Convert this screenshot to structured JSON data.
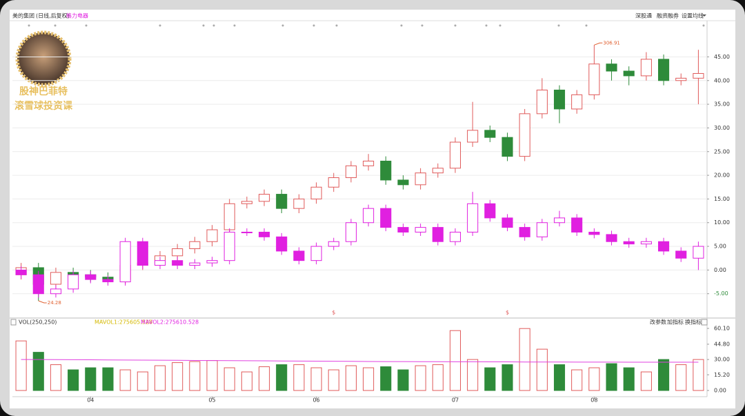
{
  "chart_data": {
    "type": "candlestick",
    "title": "美的集团",
    "subtitle": "(日线,后复权)",
    "compare_label": "格力电器",
    "toolbar": [
      "深股通",
      "融资融券",
      "设置均线"
    ],
    "categories": [
      null,
      null,
      null,
      null,
      "04",
      null,
      null,
      null,
      null,
      null,
      null,
      "05",
      null,
      null,
      null,
      null,
      null,
      "06",
      null,
      null,
      null,
      null,
      null,
      null,
      null,
      "07",
      null,
      null,
      null,
      null,
      null,
      null,
      null,
      "08",
      null,
      null,
      null,
      null,
      null,
      null
    ],
    "series": [
      {
        "name": "美的集团",
        "color_up": "#e05a5a",
        "color_down": "#2e8b3a",
        "open": [
          -1,
          0.5,
          -3,
          -0.5,
          -1,
          -1.5,
          -2,
          1,
          1.5,
          3,
          4.5,
          6,
          8.5,
          14,
          14.5,
          16,
          13,
          15,
          17.5,
          19.5,
          22,
          23,
          19,
          18,
          20.5,
          21.5,
          27,
          29.5,
          28,
          24,
          33,
          38,
          34,
          37,
          43.5,
          42,
          41,
          44.5,
          40,
          40.5
        ],
        "high": [
          1.5,
          1.5,
          0.5,
          0.5,
          0,
          -0.5,
          2,
          2.5,
          4,
          5.5,
          7,
          9.5,
          15,
          15.5,
          17,
          17,
          16,
          18.5,
          20.5,
          23,
          24.5,
          24,
          20,
          21.5,
          22.5,
          28,
          35.5,
          30.5,
          29,
          34,
          40.5,
          39,
          38,
          47.5,
          44.5,
          43,
          46,
          45.5,
          41.5,
          46.5
        ],
        "low": [
          -2,
          -6.5,
          -4,
          -2,
          -2.5,
          -3,
          -3,
          0,
          0.5,
          2,
          3.5,
          5,
          7.5,
          13,
          13.5,
          12,
          12,
          14,
          16.5,
          18.5,
          21,
          18,
          17,
          17,
          19.5,
          20.5,
          26,
          27,
          23,
          23,
          32,
          31,
          33,
          36,
          40,
          39,
          40,
          39,
          39,
          35
        ],
        "close": [
          0.5,
          -3,
          -0.5,
          -1,
          -1.5,
          -2,
          1,
          1.5,
          3,
          4.5,
          6,
          8.5,
          14,
          14.5,
          16,
          13,
          15,
          17.5,
          19.5,
          22,
          23,
          19,
          18,
          20.5,
          21.5,
          27,
          29.5,
          28,
          24,
          33,
          38,
          34,
          37,
          43.5,
          42,
          41,
          44.5,
          40,
          40.5,
          41.5
        ]
      },
      {
        "name": "格力电器",
        "color_up": "#e020e0",
        "color_down": "#e020e0",
        "open": [
          0,
          -1,
          -5,
          -4,
          -1,
          -2,
          -2.5,
          6,
          1,
          2,
          1,
          1.5,
          2,
          8,
          8,
          7,
          4,
          2,
          5,
          6,
          10,
          13,
          9,
          8,
          9,
          6,
          8,
          14,
          11,
          9,
          7,
          10,
          11,
          8,
          7.5,
          6,
          5.5,
          6,
          4,
          2.5
        ],
        "high": [
          0.8,
          -0.2,
          -3.2,
          -0.2,
          -0.2,
          -1.2,
          6.8,
          6.8,
          2.8,
          2.8,
          2.3,
          2.8,
          8.8,
          8.8,
          8.8,
          7.8,
          4.8,
          5.8,
          6.8,
          10.8,
          13.8,
          13.8,
          9.8,
          9.8,
          9.8,
          8.8,
          16.5,
          14.8,
          11.8,
          9.8,
          10.8,
          12.5,
          11.8,
          8.8,
          8.3,
          6.8,
          6.8,
          6.8,
          4.8,
          6
        ],
        "low": [
          -1.8,
          -5.8,
          -5.8,
          -4.8,
          -2.8,
          -3.3,
          -3.3,
          0.2,
          0.2,
          0.2,
          0.2,
          0.7,
          1.2,
          7.2,
          6.2,
          3.2,
          1.2,
          1.2,
          4.2,
          5.2,
          9.2,
          8.2,
          7.2,
          7.2,
          5.2,
          5.2,
          7.2,
          10.2,
          8.2,
          6.2,
          6.2,
          9.2,
          7.2,
          6.7,
          5.2,
          4.7,
          4.7,
          3.2,
          1.7,
          0
        ],
        "close": [
          -1,
          -5,
          -4,
          -1,
          -2,
          -2.5,
          6,
          1,
          2,
          1,
          1.5,
          2,
          8,
          8,
          7,
          4,
          2,
          5,
          6,
          10,
          13,
          9,
          8,
          9,
          6,
          8,
          14,
          11,
          9,
          7,
          10,
          11,
          8,
          7.5,
          6,
          5.5,
          6,
          4,
          2.5,
          5
        ]
      }
    ],
    "ylim": [
      -9.7,
      50.6
    ],
    "yticks": [
      {
        "value": -5,
        "label": "-5.00"
      },
      {
        "value": 0,
        "label": "0.00"
      },
      {
        "value": 5,
        "label": "5.00"
      },
      {
        "value": 10,
        "label": "10.00"
      },
      {
        "value": 15,
        "label": "15.00"
      },
      {
        "value": 20,
        "label": "20.00"
      },
      {
        "value": 25,
        "label": "25.00"
      },
      {
        "value": 30,
        "label": "30.00"
      },
      {
        "value": 35,
        "label": "35.00"
      },
      {
        "value": 40,
        "label": "40.00"
      },
      {
        "value": 45,
        "label": "45.00"
      }
    ],
    "grid": true,
    "high_label": "306.91",
    "low_label": "24.28",
    "dividend": {
      "symbol": "$",
      "indices": [
        18,
        28
      ]
    },
    "watermark": [
      "股神巴菲特",
      "滚雪球投资课"
    ],
    "volume": {
      "title": "VOL(250,250)",
      "ma1_label": "MAVOL1:275605.528",
      "ma2_label": "MAVOL2:275610.528",
      "buttons": [
        "改参数",
        "加指标",
        "换指标"
      ],
      "values": [
        48,
        37,
        25,
        20,
        22,
        22,
        20,
        18,
        24,
        27,
        28,
        29,
        22,
        18,
        23,
        25,
        25,
        22,
        20,
        24,
        22,
        23,
        20,
        24,
        25,
        58,
        30,
        22,
        25,
        60,
        40,
        25,
        20,
        22,
        26,
        22,
        18,
        30,
        25,
        30
      ],
      "ma": [
        30,
        30,
        29.9,
        29.8,
        29.7,
        29.6,
        29.5,
        29.4,
        29.3,
        29.2,
        29.1,
        29,
        28.9,
        28.8,
        28.7,
        28.6,
        28.5,
        28.4,
        28.3,
        28.2,
        28.1,
        28,
        28,
        27.9,
        27.9,
        27.8,
        27.8,
        27.7,
        27.7,
        27.6,
        27.6,
        27.6,
        27.5,
        27.5,
        27.5,
        27.4,
        27.4,
        27.4,
        27.4,
        27.4
      ],
      "ma_color": "#e040e0",
      "ylim": [
        -4,
        62.8
      ],
      "yticks": [
        {
          "value": 0,
          "label": "0.00"
        },
        {
          "value": 15.2,
          "label": "15.20"
        },
        {
          "value": 30,
          "label": "30.00"
        },
        {
          "value": 44.8,
          "label": "44.80"
        },
        {
          "value": 60.1,
          "label": "60.10"
        }
      ]
    }
  }
}
